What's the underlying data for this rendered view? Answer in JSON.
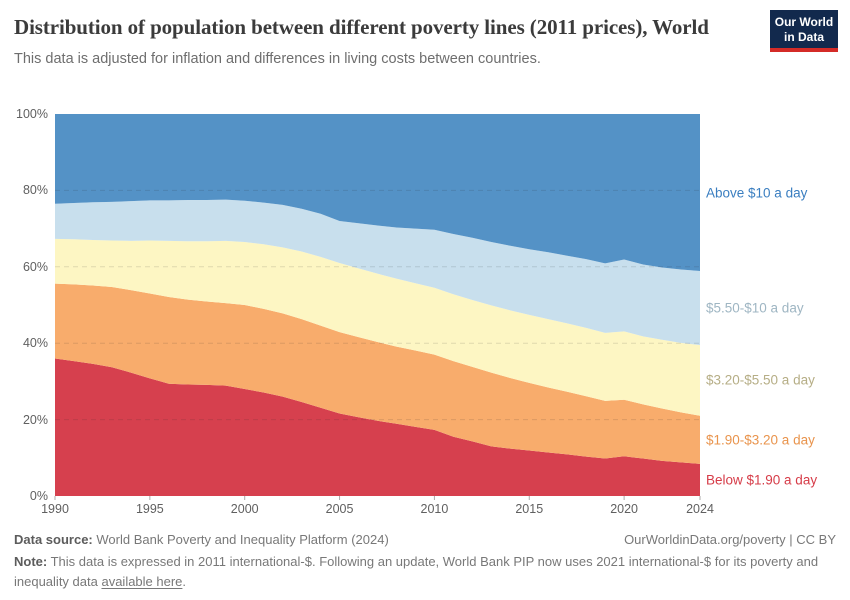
{
  "header": {
    "title": "Distribution of population between different poverty lines (2011 prices), World",
    "subtitle": "This data is adjusted for inflation and differences in living costs between countries.",
    "logo": {
      "line1": "Our World",
      "line2": "in Data",
      "bg_color": "#12294d",
      "accent_color": "#d42b27"
    }
  },
  "chart_data": {
    "type": "area",
    "stacked": true,
    "unit": "%",
    "grid": "dashed-horizontal",
    "legend_position": "right-of-plot",
    "ylim": [
      0,
      100
    ],
    "yticks": [
      "0%",
      "20%",
      "40%",
      "60%",
      "80%",
      "100%"
    ],
    "xticks": [
      1990,
      1995,
      2000,
      2005,
      2010,
      2015,
      2020,
      2024
    ],
    "x": [
      1990,
      1991,
      1992,
      1993,
      1994,
      1995,
      1996,
      1997,
      1998,
      1999,
      2000,
      2001,
      2002,
      2003,
      2004,
      2005,
      2006,
      2007,
      2008,
      2009,
      2010,
      2011,
      2012,
      2013,
      2014,
      2015,
      2016,
      2017,
      2018,
      2019,
      2020,
      2021,
      2022,
      2023,
      2024
    ],
    "series": [
      {
        "name": "Below $1.90 a day",
        "color": "#d6404e",
        "label_color": "#d63c48",
        "values": [
          36.0,
          35.3,
          34.6,
          33.7,
          32.3,
          30.8,
          29.4,
          29.2,
          29.1,
          28.9,
          28.0,
          27.1,
          26.0,
          24.6,
          23.1,
          21.6,
          20.6,
          19.7,
          18.9,
          18.1,
          17.3,
          15.5,
          14.3,
          13.0,
          12.4,
          11.9,
          11.4,
          10.9,
          10.3,
          9.8,
          10.4,
          9.8,
          9.2,
          8.8,
          8.4
        ]
      },
      {
        "name": "$1.90-$3.20 a day",
        "color": "#f8ac6c",
        "label_color": "#e9944d",
        "values": [
          19.6,
          20.1,
          20.5,
          21.0,
          21.6,
          22.2,
          22.7,
          22.2,
          21.8,
          21.6,
          22.0,
          21.9,
          21.8,
          21.7,
          21.5,
          21.3,
          21.0,
          20.6,
          20.2,
          20.0,
          19.7,
          19.8,
          19.5,
          19.3,
          18.5,
          17.7,
          17.0,
          16.4,
          15.8,
          15.1,
          14.8,
          14.2,
          13.7,
          13.1,
          12.6
        ]
      },
      {
        "name": "$3.20-$5.50 a day",
        "color": "#fdf6c3",
        "label_color": "#b6ae86",
        "values": [
          11.7,
          11.8,
          11.9,
          12.2,
          12.9,
          13.9,
          14.7,
          15.3,
          15.8,
          16.3,
          16.5,
          16.9,
          17.3,
          17.7,
          18.0,
          18.1,
          18.0,
          17.9,
          17.8,
          17.6,
          17.5,
          17.5,
          17.5,
          17.6,
          17.7,
          17.8,
          17.9,
          17.9,
          17.9,
          17.8,
          17.9,
          17.8,
          18.0,
          18.2,
          18.5
        ]
      },
      {
        "name": "$5.50-$10 a day",
        "color": "#c8dfed",
        "label_color": "#9fb6c3",
        "values": [
          9.2,
          9.5,
          9.9,
          10.1,
          10.4,
          10.5,
          10.6,
          10.8,
          10.8,
          10.8,
          10.8,
          10.9,
          11.1,
          11.2,
          11.3,
          11.0,
          11.8,
          12.6,
          13.4,
          14.3,
          15.2,
          15.8,
          16.3,
          16.6,
          16.9,
          17.2,
          17.5,
          17.7,
          18.0,
          18.2,
          18.8,
          18.8,
          18.9,
          19.2,
          19.4
        ]
      },
      {
        "name": "Above $10 a day",
        "color": "#5492c6",
        "label_color": "#3a7ec0",
        "values": [
          23.5,
          23.3,
          23.1,
          23.0,
          22.8,
          22.6,
          22.6,
          22.5,
          22.5,
          22.4,
          22.7,
          23.2,
          23.8,
          24.8,
          26.1,
          28.0,
          28.6,
          29.2,
          29.7,
          30.0,
          30.3,
          31.4,
          32.4,
          33.5,
          34.5,
          35.4,
          36.2,
          37.1,
          38.0,
          39.1,
          38.1,
          39.4,
          40.2,
          40.7,
          41.1
        ]
      }
    ]
  },
  "footer": {
    "source_label": "Data source:",
    "source_text": "World Bank Poverty and Inequality Platform (2024)",
    "attribution": "OurWorldinData.org/poverty | CC BY",
    "note_label": "Note:",
    "note_text": "This data is expressed in 2011 international-$. Following an update, World Bank PIP now uses 2021 international-$ for its poverty and inequality data",
    "note_link": "available here",
    "note_suffix": "."
  }
}
